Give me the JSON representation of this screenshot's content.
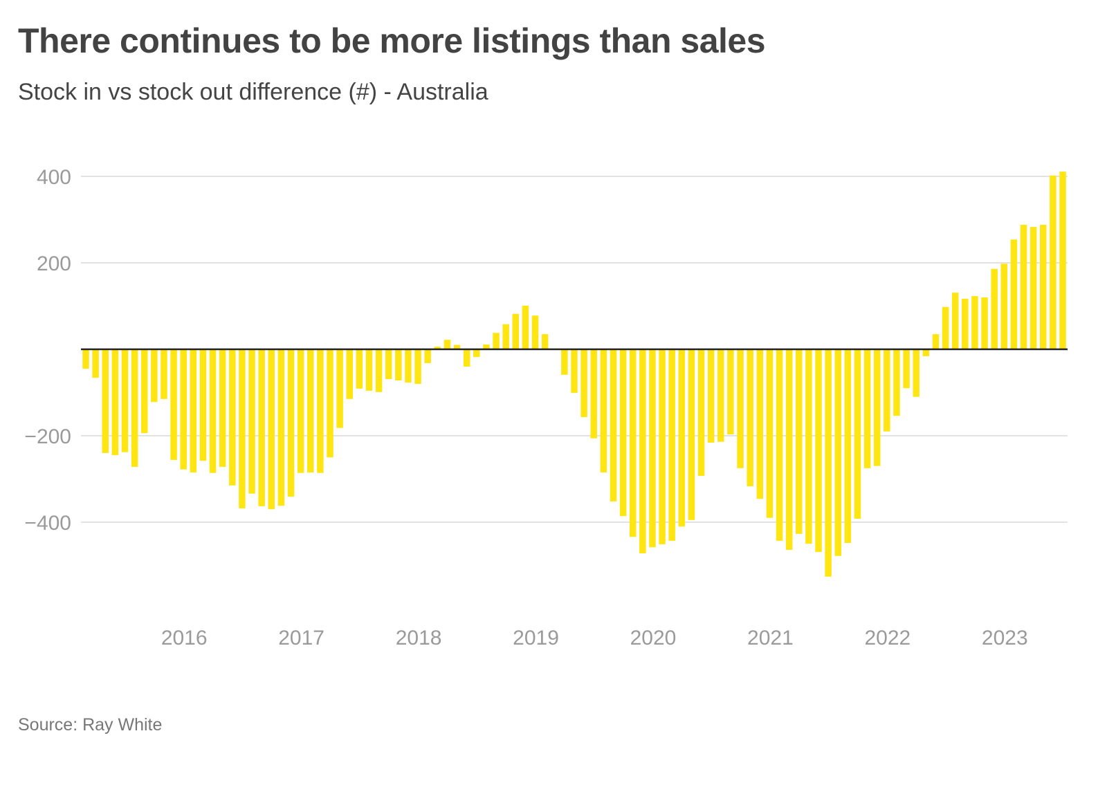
{
  "chart_data": {
    "type": "bar",
    "title": "There continues to be more listings than sales",
    "subtitle": "Stock in vs stock out difference (#) - Australia",
    "source": "Source: Ray White",
    "xlabel": "",
    "ylabel": "",
    "ylim": [
      -600,
      450
    ],
    "grid": true,
    "legend": "none",
    "bar_color": "#FFE512",
    "start_month": "2015-03",
    "frequency": "monthly",
    "y_ticks": [
      400,
      200,
      -200,
      -400
    ],
    "y_tick_labels": [
      "400",
      "200",
      "−200",
      "−400"
    ],
    "x_tick_labels": [
      {
        "label": "2016",
        "index": 10
      },
      {
        "label": "2017",
        "index": 22
      },
      {
        "label": "2018",
        "index": 34
      },
      {
        "label": "2019",
        "index": 46
      },
      {
        "label": "2020",
        "index": 58
      },
      {
        "label": "2021",
        "index": 70
      },
      {
        "label": "2022",
        "index": 82
      },
      {
        "label": "2023",
        "index": 94
      }
    ],
    "values": [
      -45,
      -66,
      -240,
      -245,
      -238,
      -272,
      -194,
      -122,
      -115,
      -256,
      -278,
      -285,
      -258,
      -286,
      -272,
      -315,
      -368,
      -334,
      -363,
      -370,
      -362,
      -341,
      -286,
      -285,
      -286,
      -250,
      -182,
      -115,
      -91,
      -96,
      -99,
      -69,
      -72,
      -77,
      -80,
      -32,
      6,
      22,
      10,
      -40,
      -18,
      11,
      38,
      58,
      82,
      101,
      78,
      35,
      0,
      -59,
      -101,
      -157,
      -206,
      -285,
      -352,
      -386,
      -434,
      -472,
      -458,
      -451,
      -443,
      -410,
      -395,
      -293,
      -216,
      -214,
      -197,
      -275,
      -317,
      -346,
      -390,
      -443,
      -464,
      -427,
      -450,
      -469,
      -526,
      -478,
      -448,
      -392,
      -275,
      -270,
      -190,
      -154,
      -90,
      -110,
      -16,
      35,
      98,
      131,
      117,
      123,
      120,
      186,
      198,
      254,
      288,
      283,
      288,
      402,
      411
    ]
  }
}
